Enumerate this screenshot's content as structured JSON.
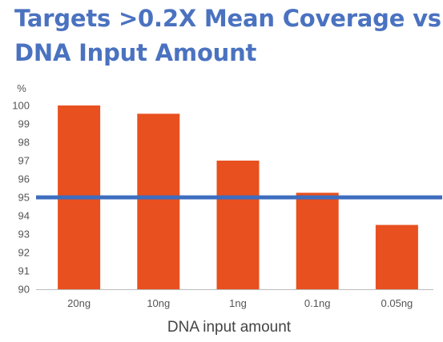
{
  "title_lines": [
    "Targets >0.2X Mean Coverage vs",
    "DNA Input Amount"
  ],
  "chart_data": {
    "type": "bar",
    "title": "Targets >0.2X Mean Coverage vs DNA Input Amount",
    "xlabel": "DNA input amount",
    "ylabel": "%",
    "categories": [
      "20ng",
      "10ng",
      "1ng",
      "0.1ng",
      "0.05ng"
    ],
    "values": [
      100,
      99.55,
      97.0,
      95.25,
      93.5
    ],
    "ylim": [
      90,
      100
    ],
    "yticks": [
      90,
      91,
      92,
      93,
      94,
      95,
      96,
      97,
      98,
      99,
      100
    ],
    "reference_line": 95,
    "grid": false,
    "colors": {
      "bar": "#e8501f",
      "reference_line": "#3d6dbf",
      "title": "#4a72c0",
      "axis": "#bbbbbb"
    }
  }
}
